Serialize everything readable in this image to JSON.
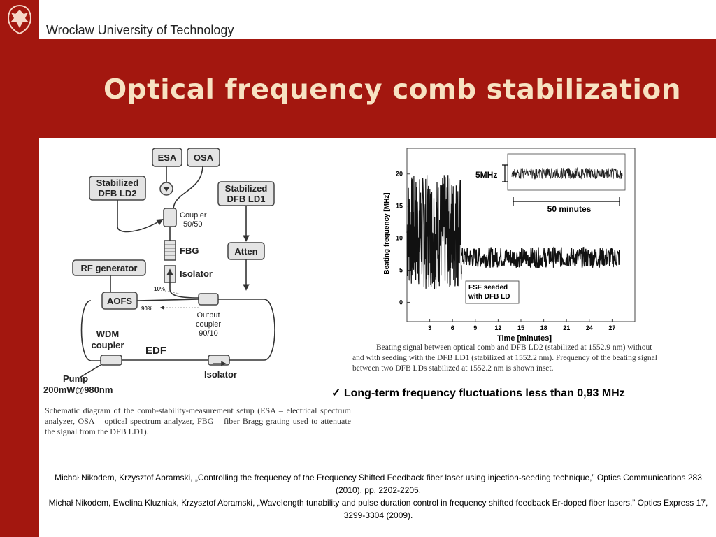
{
  "header": {
    "university": "Wrocław University of Technology",
    "title": "Optical frequency comb stabilization",
    "colors": {
      "brand_red": "#a3170f",
      "title_text": "#f7e2c2"
    }
  },
  "schematic": {
    "labels": {
      "esa": "ESA",
      "osa": "OSA",
      "ld2": [
        "Stabilized",
        "DFB LD2"
      ],
      "ld1": [
        "Stabilized",
        "DFB LD1"
      ],
      "coupler": [
        "Coupler",
        "50/50"
      ],
      "fbg": "FBG",
      "isolator_top": "Isolator",
      "atten": "Atten",
      "rf": "RF generator",
      "aofs": "AOFS",
      "pct10": "10%",
      "pct90": "90%",
      "output_coupler": [
        "Output",
        "coupler",
        "90/10"
      ],
      "wdm": [
        "WDM",
        "coupler"
      ],
      "edf": "EDF",
      "pump": [
        "Pump",
        "200mW@980nm"
      ],
      "isolator_bottom": "Isolator"
    },
    "caption": "Schematic diagram of the comb-stability-measurement setup (ESA – electrical spectrum analyzer, OSA – optical spectrum analyzer, FBG – fiber Bragg grating used to attenuate the signal from the DFB LD1)."
  },
  "chart_data": {
    "type": "line",
    "xlabel": "Time [minutes]",
    "ylabel": "Beating frequency [MHz]",
    "xticks": [
      3,
      6,
      9,
      12,
      15,
      18,
      21,
      24,
      27
    ],
    "yticks": [
      0,
      5,
      10,
      15,
      20
    ],
    "xlim": [
      0,
      30
    ],
    "ylim": [
      -3,
      24
    ],
    "series": [
      {
        "values_description": "unseeded",
        "x_range": [
          0,
          7.2
        ],
        "y_range": [
          2,
          20
        ]
      },
      {
        "values_description": "seeded",
        "x_range": [
          7.2,
          28
        ],
        "y_range": [
          5,
          9
        ]
      }
    ],
    "annotations": {
      "seeded": [
        "FSF seeded",
        "with DFB LD"
      ],
      "inset_scale": "5MHz",
      "inset_span": "50 minutes"
    },
    "caption": "Beating signal between optical comb and DFB LD2 (stabilized at 1552.9 nm) without and with seeding with the DFB LD1 (stabilized at 1552.2 nm). Frequency of the beating signal between two DFB LDs stabilized at 1552.2 nm is shown inset."
  },
  "conclusion": "Long-term frequency fluctuations less than 0,93 MHz",
  "references": [
    "Michał Nikodem, Krzysztof Abramski, „Controlling the frequency of the Frequency Shifted Feedback fiber laser using injection-seeding technique,” Optics Communications 283 (2010), pp. 2202-2205.",
    "Michał Nikodem, Ewelina Kluzniak, Krzysztof Abramski, „Wavelength tunability and pulse duration control in frequency shifted feedback Er-doped fiber lasers,” Optics Express 17, 3299-3304 (2009)."
  ]
}
